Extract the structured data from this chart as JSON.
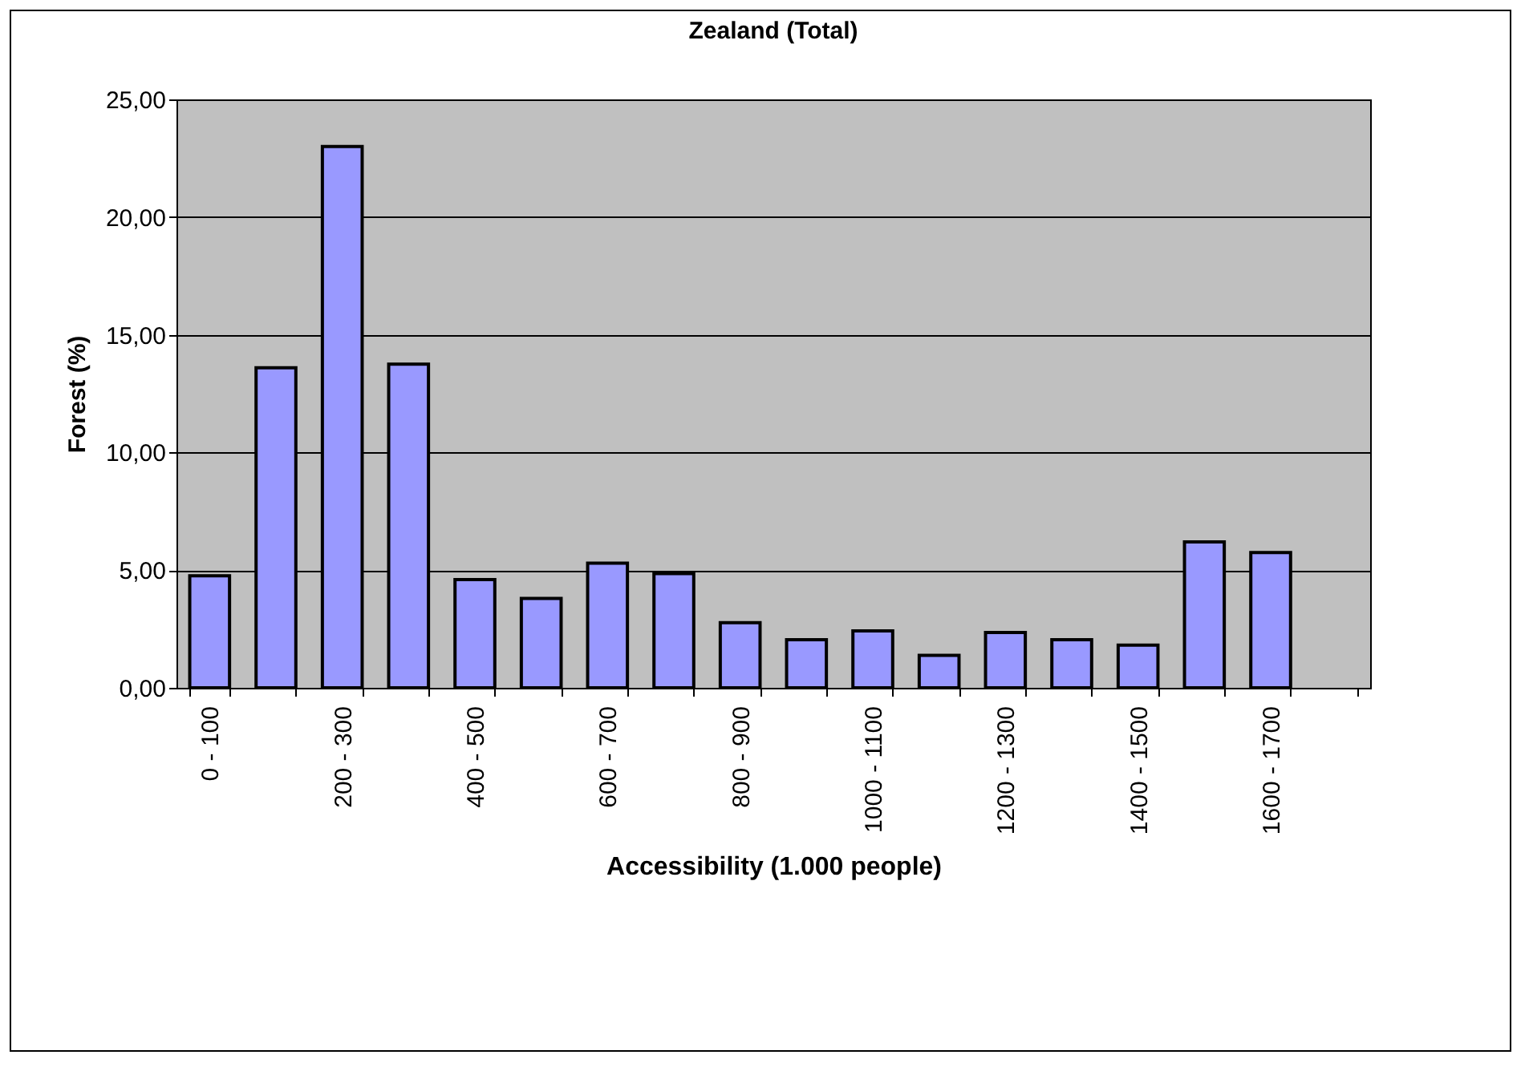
{
  "chart_data": {
    "type": "bar",
    "title": "Zealand (Total)",
    "xlabel": "Accessibility (1.000 people)",
    "ylabel": "Forest (%)",
    "categories": [
      "0 - 100",
      null,
      "200 - 300",
      null,
      "400 - 500",
      null,
      "600 - 700",
      null,
      "800 - 900",
      null,
      "1000 - 1100",
      null,
      "1200 - 1300",
      null,
      "1400 - 1500",
      null,
      "1600 - 1700",
      null
    ],
    "values": [
      4.76,
      13.6,
      23.0,
      13.75,
      4.6,
      3.8,
      5.3,
      4.85,
      2.77,
      2.04,
      2.42,
      1.38,
      2.35,
      2.04,
      1.81,
      6.2,
      5.75,
      null
    ],
    "color": "#9999ff",
    "ylim": [
      0,
      25
    ],
    "yticks": [
      {
        "value": 0,
        "label": "0,00"
      },
      {
        "value": 5,
        "label": "5,00"
      },
      {
        "value": 10,
        "label": "10,00"
      },
      {
        "value": 15,
        "label": "15,00"
      },
      {
        "value": 20,
        "label": "20,00"
      },
      {
        "value": 25,
        "label": "25,00"
      }
    ],
    "grid": "y"
  }
}
